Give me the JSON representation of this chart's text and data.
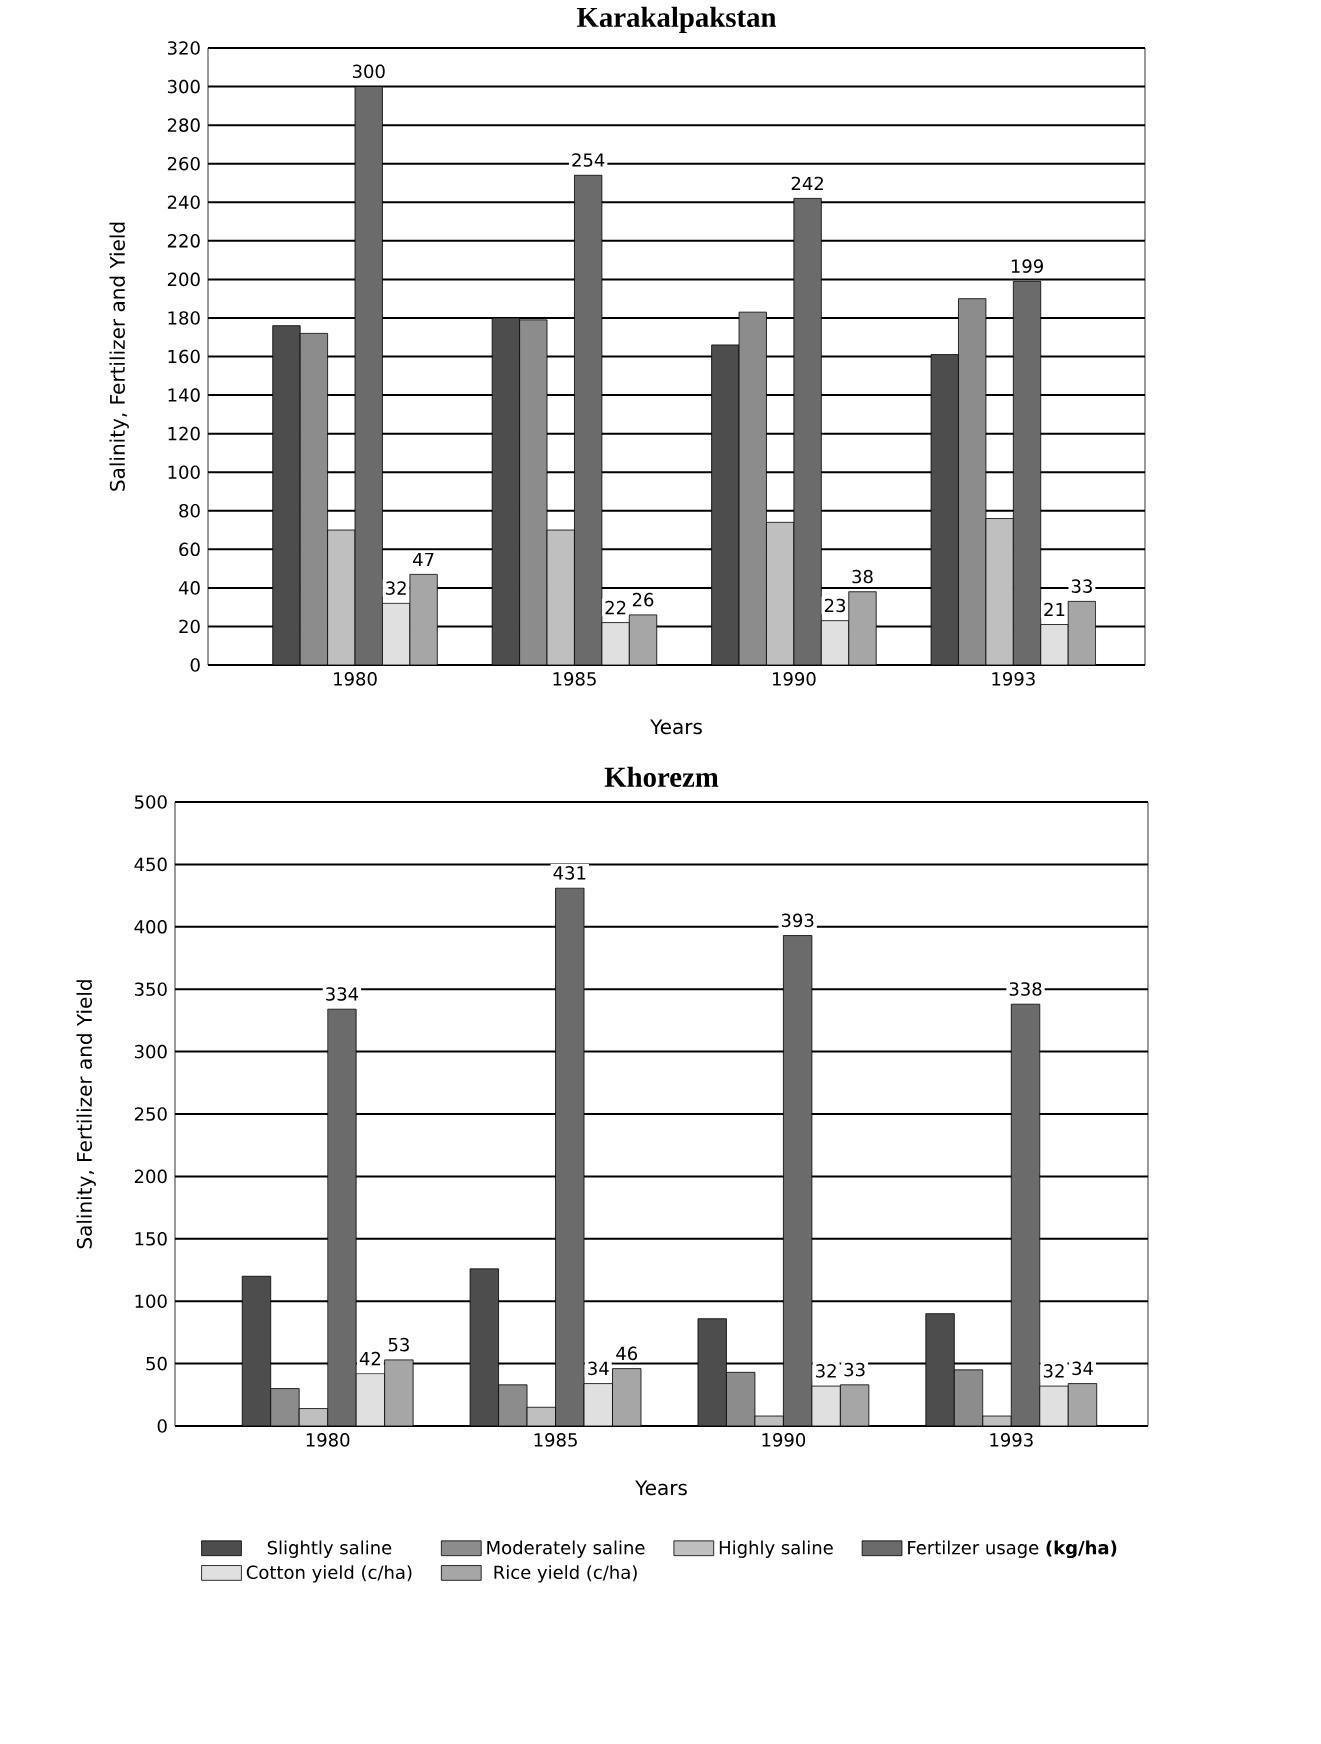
{
  "chart_data": [
    {
      "type": "bar",
      "title": "Karakalpakstan",
      "xlabel": "Years",
      "ylabel": "Salinity, Fertilizer and Yield",
      "categories": [
        "1980",
        "1985",
        "1990",
        "1993"
      ],
      "ylim": [
        0,
        320
      ],
      "yticks": [
        0,
        20,
        40,
        60,
        80,
        100,
        120,
        140,
        160,
        180,
        200,
        220,
        240,
        260,
        280,
        300,
        320
      ],
      "grid": "y",
      "legend": false,
      "series": [
        {
          "color": "#4d4d4d",
          "values": [
            176,
            180,
            166,
            161
          ]
        },
        {
          "color": "#8c8c8c",
          "values": [
            172,
            179,
            183,
            190
          ]
        },
        {
          "color": "#bfbfbf",
          "values": [
            70,
            70,
            74,
            76
          ]
        },
        {
          "color": "#6b6b6b",
          "values": [
            300,
            254,
            242,
            199
          ],
          "value_labels": [
            "300",
            "254",
            "242",
            "199"
          ]
        },
        {
          "color": "#e0e0e0",
          "values": [
            32,
            22,
            23,
            21
          ],
          "value_labels": [
            "32",
            "22",
            "23",
            "21"
          ]
        },
        {
          "color": "#a6a6a6",
          "values": [
            47,
            26,
            38,
            33
          ],
          "value_labels": [
            "47",
            "26",
            "38",
            "33"
          ]
        }
      ]
    },
    {
      "type": "bar",
      "title": "Khorezm",
      "xlabel": "Years",
      "ylabel": "Salinity, Fertilizer and Yield",
      "categories": [
        "1980",
        "1985",
        "1990",
        "1993"
      ],
      "ylim": [
        0,
        500
      ],
      "yticks": [
        0,
        50,
        100,
        150,
        200,
        250,
        300,
        350,
        400,
        450,
        500
      ],
      "grid": "y",
      "legend": "bottom",
      "series": [
        {
          "name": "Slightly saline",
          "color": "#4d4d4d",
          "values": [
            120,
            126,
            86,
            90
          ]
        },
        {
          "name": "Moderately saline",
          "color": "#8c8c8c",
          "values": [
            30,
            33,
            43,
            45
          ]
        },
        {
          "name": "Highly saline",
          "color": "#bfbfbf",
          "values": [
            14,
            15,
            8,
            8
          ]
        },
        {
          "name": "Fertilzer usage **(kg/ha)**",
          "color": "#6b6b6b",
          "values": [
            334,
            431,
            393,
            338
          ],
          "value_labels": [
            "334",
            "431",
            "393",
            "338"
          ]
        },
        {
          "name": "Cotton yield (c/ha)",
          "color": "#e0e0e0",
          "values": [
            42,
            34,
            32,
            32
          ],
          "value_labels": [
            "42",
            "34",
            "32",
            "32"
          ]
        },
        {
          "name": "Rice yield (c/ha)",
          "color": "#a6a6a6",
          "values": [
            53,
            46,
            33,
            34
          ],
          "value_labels": [
            "53",
            "46",
            "33",
            "34"
          ]
        }
      ]
    }
  ]
}
